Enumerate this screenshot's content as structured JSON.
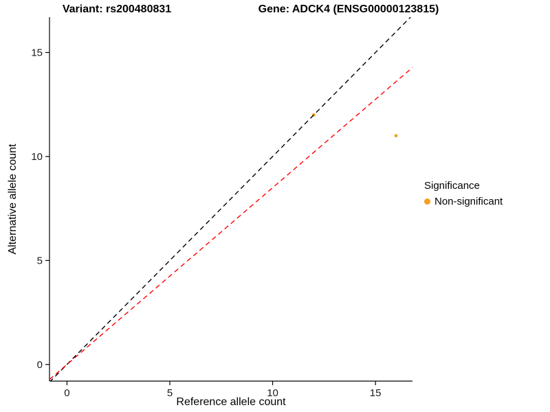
{
  "title": {
    "variant": "Variant: rs200480831",
    "gene": "Gene: ADCK4 (ENSG00000123815)"
  },
  "legend": {
    "title": "Significance",
    "items": [
      {
        "label": "Non-significant",
        "color": "#F5A020"
      }
    ]
  },
  "chart_data": {
    "type": "scatter",
    "title": "Variant: rs200480831   Gene: ADCK4 (ENSG00000123815)",
    "xlabel": "Reference allele count",
    "ylabel": "Alternative allele count",
    "xlim": [
      -0.85,
      16.8
    ],
    "ylim": [
      -0.8,
      16.7
    ],
    "x_ticks": [
      0,
      5,
      10,
      15
    ],
    "y_ticks": [
      0,
      5,
      10,
      15
    ],
    "grid": false,
    "legend_position": "right",
    "points": [
      {
        "x": 12,
        "y": 12,
        "color": "#F5A020",
        "series": "Non-significant"
      },
      {
        "x": 16,
        "y": 11,
        "color": "#F5A020",
        "series": "Non-significant"
      }
    ],
    "lines": [
      {
        "name": "identity-line",
        "slope": 1,
        "intercept": 0,
        "color": "#000000",
        "dash": "7 5"
      },
      {
        "name": "ratio-line",
        "slope": 0.85,
        "intercept": 0,
        "color": "#FF0000",
        "dash": "7 5"
      }
    ],
    "axis_color": "#000000",
    "tick_label_color": "#1a1a1a"
  }
}
